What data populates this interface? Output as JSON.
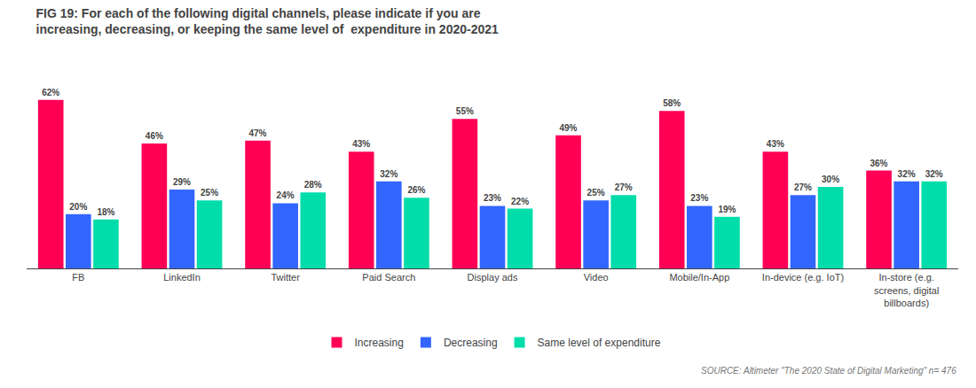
{
  "chart_data": {
    "type": "bar",
    "title": "FIG 19: For each of the following digital channels, please indicate if you are\nincreasing, decreasing, or keeping the same level of  expenditure in 2020-2021",
    "categories": [
      "FB",
      "LinkedIn",
      "Twitter",
      "Paid Search",
      "Display ads",
      "Video",
      "Mobile/In-App",
      "In-device (e.g. IoT)",
      "In-store (e.g.\nscreens, digital\nbillboards)"
    ],
    "series": [
      {
        "name": "Increasing",
        "color": "#ff0055",
        "values": [
          62,
          46,
          47,
          43,
          55,
          49,
          58,
          43,
          36
        ],
        "value_labels": [
          "62%",
          "46%",
          "47%",
          "43%",
          "55%",
          "49%",
          "58%",
          "43%",
          "36%"
        ]
      },
      {
        "name": "Decreasing",
        "color": "#3366ff",
        "values": [
          20,
          29,
          24,
          32,
          23,
          25,
          23,
          27,
          32
        ],
        "value_labels": [
          "20%",
          "29%",
          "24%",
          "32%",
          "23%",
          "25%",
          "23%",
          "27%",
          "32%"
        ]
      },
      {
        "name": "Same level of expenditure",
        "color": "#00ddaa",
        "values": [
          18,
          25,
          28,
          26,
          22,
          27,
          19,
          30,
          32
        ],
        "value_labels": [
          "18%",
          "25%",
          "28%",
          "26%",
          "22%",
          "27%",
          "19%",
          "30%",
          "32%"
        ]
      }
    ],
    "ylim": [
      0,
      75
    ],
    "grid": false,
    "legend": "bottom",
    "data_labels": true,
    "tick_labels": "x",
    "annotations": [
      "SOURCE: Altimeter \"The 2020 State of Digital Marketing\" n= 476"
    ]
  }
}
